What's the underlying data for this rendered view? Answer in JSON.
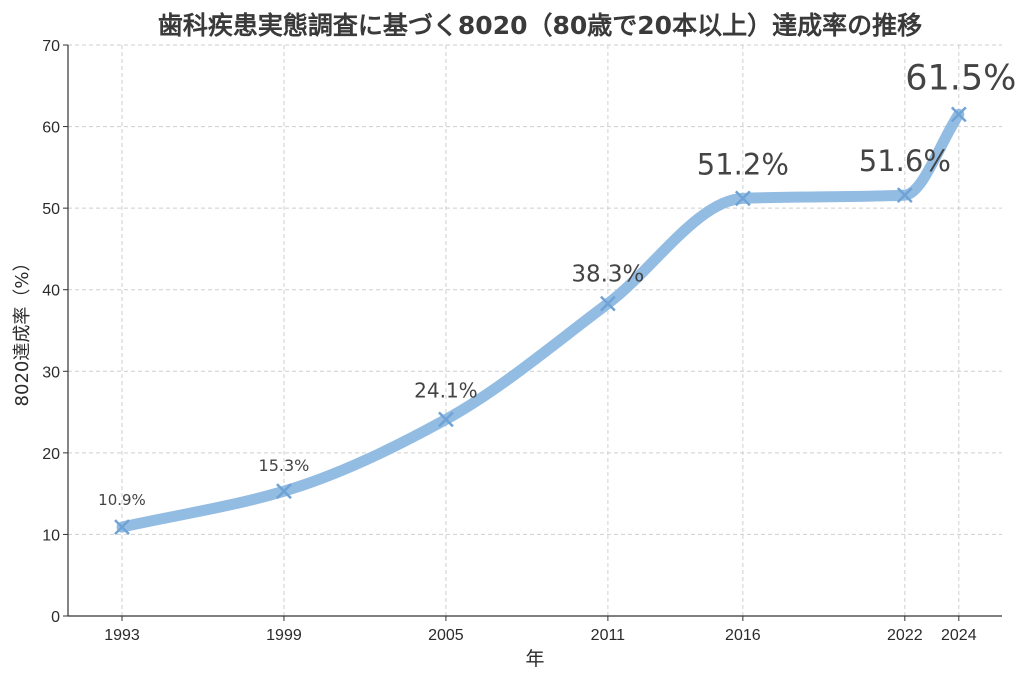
{
  "chart_data": {
    "type": "line",
    "title": "歯科疾患実態調査に基づく8020（80歳で20本以上）達成率の推移",
    "xlabel": "年",
    "ylabel": "8020達成率（%）",
    "x": [
      1993,
      1999,
      2005,
      2011,
      2016,
      2022,
      2024
    ],
    "x_tick_labels": [
      "1993",
      "1999",
      "2005",
      "2011",
      "2016",
      "2022",
      "2024"
    ],
    "y_ticks": [
      0,
      10,
      20,
      30,
      40,
      50,
      60,
      70
    ],
    "y_tick_labels": [
      "0",
      "10",
      "20",
      "30",
      "40",
      "50",
      "60",
      "70"
    ],
    "ylim": [
      0,
      70
    ],
    "xlim": [
      1991,
      2025.6
    ],
    "series": [
      {
        "values": [
          10.9,
          15.3,
          24.1,
          38.3,
          51.2,
          51.6,
          61.5
        ],
        "labels": [
          "10.9%",
          "15.3%",
          "24.1%",
          "38.3%",
          "51.2%",
          "51.6%",
          "61.5%"
        ],
        "color": "#8db8e2",
        "marker": "x"
      }
    ],
    "grid": true,
    "grid_style": "dashed"
  }
}
